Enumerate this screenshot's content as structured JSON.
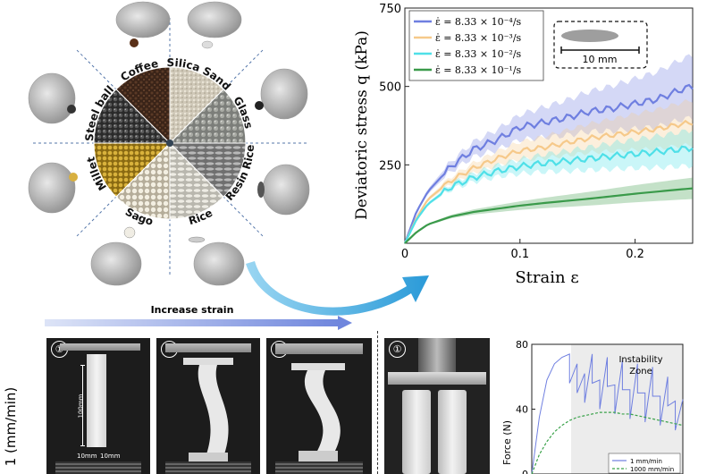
{
  "wheel": {
    "labels": [
      "Coffee",
      "Silica Sand",
      "Glass",
      "Resin Rice",
      "Rice",
      "Sago",
      "Millet",
      "Steel ball"
    ]
  },
  "stress_chart": {
    "ylabel": "Deviatoric stress q (kPa)",
    "xlabel": "Strain ε",
    "inset_scale": "10 mm"
  },
  "arrow": {
    "label": "Increase strain"
  },
  "photos": {
    "row_label": "1 (mm/min)",
    "numbers": [
      "①",
      "②",
      "③",
      "①"
    ],
    "dim_height": "100mm",
    "dim_width": "10mm",
    "dim_width2": "10mm"
  },
  "force_chart": {
    "ylabel": "Force (N)",
    "zone_label_1": "Instability",
    "zone_label_2": "Zone"
  },
  "colors": {
    "blue": "#6f7fe0",
    "orange": "#f6c98a",
    "cyan": "#4fe0e8",
    "green": "#3a9a4a",
    "arrow": "#4ab0e0"
  },
  "chart_data": [
    {
      "type": "line",
      "ylabel": "Deviatoric stress q (kPa)",
      "xlabel": "Strain ε",
      "xlim": [
        0,
        0.25
      ],
      "ylim": [
        0,
        750
      ],
      "x_ticks": [
        0,
        0.1,
        0.2
      ],
      "y_ticks": [
        250,
        500,
        750
      ],
      "x_tick_labels": [
        "0",
        "0.1",
        "0.2"
      ],
      "y_tick_labels": [
        "250",
        "500",
        "750"
      ],
      "legend_position": "top-left",
      "series": [
        {
          "name": "ε̇ = 8.33 × 10⁻⁴/s",
          "color": "#6f7fe0",
          "x": [
            0,
            0.01,
            0.02,
            0.04,
            0.06,
            0.08,
            0.1,
            0.12,
            0.14,
            0.16,
            0.18,
            0.2,
            0.22,
            0.24,
            0.25
          ],
          "y": [
            0,
            100,
            165,
            245,
            300,
            330,
            370,
            385,
            400,
            420,
            430,
            445,
            460,
            490,
            500
          ]
        },
        {
          "name": "ε̇ = 8.33 × 10⁻³/s",
          "color": "#f6c98a",
          "x": [
            0,
            0.01,
            0.02,
            0.04,
            0.06,
            0.08,
            0.1,
            0.12,
            0.14,
            0.16,
            0.18,
            0.2,
            0.22,
            0.24,
            0.25
          ],
          "y": [
            0,
            80,
            140,
            200,
            240,
            270,
            295,
            305,
            320,
            335,
            345,
            355,
            365,
            380,
            385
          ]
        },
        {
          "name": "ε̇ = 8.33 × 10⁻²/s",
          "color": "#4fe0e8",
          "x": [
            0,
            0.01,
            0.02,
            0.04,
            0.06,
            0.08,
            0.1,
            0.12,
            0.14,
            0.16,
            0.18,
            0.2,
            0.22,
            0.24,
            0.25
          ],
          "y": [
            0,
            75,
            125,
            180,
            210,
            230,
            245,
            255,
            262,
            270,
            278,
            285,
            292,
            300,
            305
          ]
        },
        {
          "name": "ε̇ = 8.33 × 10⁻¹/s",
          "color": "#3a9a4a",
          "x": [
            0,
            0.01,
            0.02,
            0.04,
            0.06,
            0.08,
            0.1,
            0.12,
            0.14,
            0.16,
            0.18,
            0.2,
            0.22,
            0.24,
            0.25
          ],
          "y": [
            0,
            35,
            60,
            85,
            100,
            110,
            120,
            128,
            135,
            142,
            150,
            158,
            165,
            172,
            175
          ]
        }
      ]
    },
    {
      "type": "line",
      "ylabel": "Force (N)",
      "ylim": [
        0,
        80
      ],
      "y_ticks": [
        0,
        40,
        80
      ],
      "y_tick_labels": [
        "0",
        "40",
        "80"
      ],
      "annotation": "Instability Zone",
      "legend_position": "bottom-right",
      "series": [
        {
          "name": "1 mm/min",
          "color": "#6f7fe0",
          "x": [
            0,
            0.05,
            0.1,
            0.15,
            0.2,
            0.25,
            0.3,
            0.35,
            0.4,
            0.45,
            0.5,
            0.55,
            0.6,
            0.65,
            0.7,
            0.75,
            0.8,
            0.85,
            0.9,
            0.95,
            1.0
          ],
          "y": [
            0,
            35,
            58,
            68,
            72,
            74,
            68,
            62,
            74,
            58,
            72,
            55,
            70,
            52,
            68,
            50,
            66,
            48,
            60,
            45,
            46
          ]
        },
        {
          "name": "1000 mm/min",
          "color": "#3aa24a",
          "x": [
            0,
            0.05,
            0.1,
            0.15,
            0.2,
            0.25,
            0.3,
            0.35,
            0.4,
            0.45,
            0.5,
            0.55,
            0.6,
            0.65,
            0.7,
            0.75,
            0.8,
            0.85,
            0.9,
            0.95,
            1.0
          ],
          "y": [
            0,
            12,
            20,
            26,
            30,
            33,
            35,
            36,
            37,
            38,
            38,
            38,
            37,
            37,
            36,
            35,
            34,
            33,
            32,
            31,
            30
          ]
        }
      ]
    }
  ]
}
